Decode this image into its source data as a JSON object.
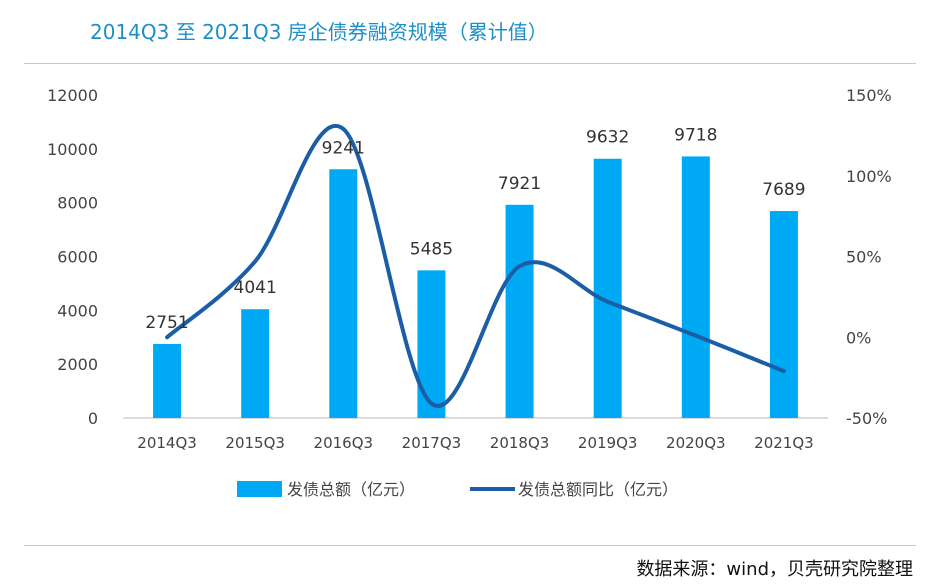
{
  "title": "2014Q3 至 2021Q3 房企债券融资规模（累计值）",
  "source": "数据来源：wind，贝壳研究院整理",
  "colors": {
    "bar": "#00a9f4",
    "line": "#1b5ea6",
    "title": "#1e8fc6"
  },
  "chart_data": {
    "type": "bar",
    "title": "2014Q3 至 2021Q3 房企债券融资规模（累计值）",
    "categories": [
      "2014Q3",
      "2015Q3",
      "2016Q3",
      "2017Q3",
      "2018Q3",
      "2019Q3",
      "2020Q3",
      "2021Q3"
    ],
    "series": [
      {
        "name": "发债总额（亿元）",
        "type": "bar",
        "axis": "left",
        "values": [
          2751,
          4041,
          9241,
          5485,
          7921,
          9632,
          9718,
          7689
        ]
      },
      {
        "name": "发债总额同比（亿元）",
        "type": "line",
        "axis": "right",
        "smooth": true,
        "values": [
          0,
          47,
          129,
          -41,
          44,
          22,
          1,
          -21
        ]
      }
    ],
    "left_axis": {
      "ylim": [
        0,
        12000
      ],
      "ticks": [
        "0",
        "2000",
        "4000",
        "6000",
        "8000",
        "10000",
        "12000"
      ]
    },
    "right_axis": {
      "ylim": [
        -50,
        150
      ],
      "ticks": [
        "-50%",
        "0%",
        "50%",
        "100%",
        "150%"
      ]
    },
    "legend": {
      "placement": "bottom",
      "entries": [
        "发债总额（亿元）",
        "发债总额同比（亿元）"
      ]
    },
    "grid": false
  }
}
